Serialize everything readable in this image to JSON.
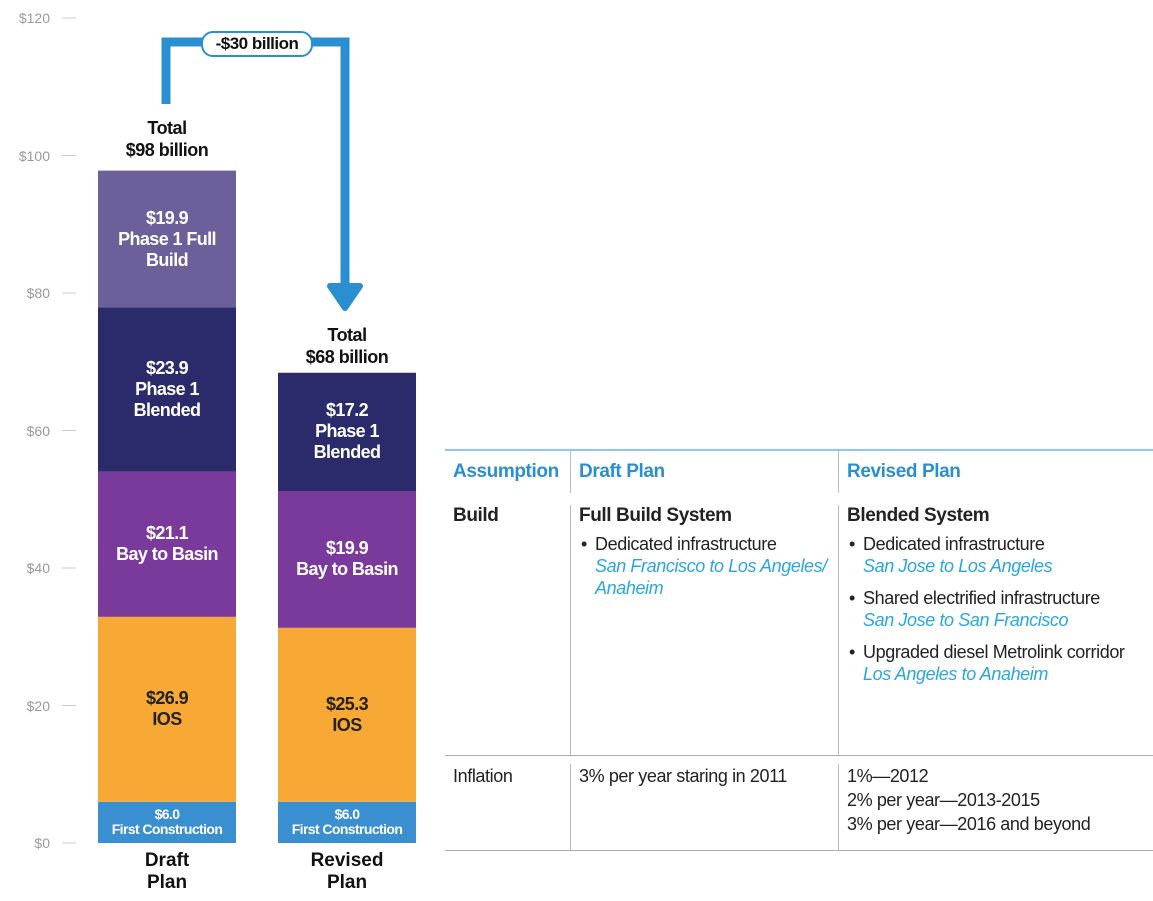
{
  "chart_data": {
    "type": "bar",
    "stacked": true,
    "categories": [
      "Draft Plan",
      "Revised Plan"
    ],
    "series": [
      {
        "name": "First Construction",
        "color": "#3a8fd0",
        "values": [
          6.0,
          6.0
        ],
        "value_labels": [
          "$6.0",
          "$6.0"
        ]
      },
      {
        "name": "IOS",
        "color": "#f8a935",
        "values": [
          26.9,
          25.3
        ],
        "value_labels": [
          "$26.9",
          "$25.3"
        ]
      },
      {
        "name": "Bay to Basin",
        "color": "#7a3a9c",
        "values": [
          21.1,
          19.9
        ],
        "value_labels": [
          "$21.1",
          "$19.9"
        ]
      },
      {
        "name": "Phase 1 Blended",
        "color": "#2b2b6c",
        "values": [
          23.9,
          17.2
        ],
        "value_labels": [
          "$23.9",
          "$17.2"
        ]
      },
      {
        "name": "Phase 1 Full Build",
        "color": "#6c5f9a",
        "values": [
          19.9,
          null
        ],
        "value_labels": [
          "$19.9",
          null
        ]
      }
    ],
    "totals": {
      "label": "Total",
      "values": [
        98,
        68
      ],
      "value_labels": [
        "$98 billion",
        "$68 billion"
      ]
    },
    "annotation": "-$30 billion",
    "ylim": [
      0,
      120
    ],
    "yticks": [
      {
        "value": 0,
        "label": "$0"
      },
      {
        "value": 20,
        "label": "$20"
      },
      {
        "value": 40,
        "label": "$40"
      },
      {
        "value": 60,
        "label": "$60"
      },
      {
        "value": 80,
        "label": "$80"
      },
      {
        "value": 100,
        "label": "$100"
      },
      {
        "value": 120,
        "label": "$120"
      }
    ]
  },
  "table": {
    "header": [
      "Assumption",
      "Draft Plan",
      "Revised Plan"
    ],
    "build": {
      "label": "Build",
      "draft": {
        "title": "Full Build System",
        "items": [
          {
            "text": "Dedicated infrastructure",
            "sub": "San Francisco to Los Angeles/ Anaheim"
          }
        ]
      },
      "revised": {
        "title": "Blended System",
        "items": [
          {
            "text": "Dedicated infrastructure",
            "sub": "San Jose to Los Angeles"
          },
          {
            "text": "Shared electrified infrastructure",
            "sub": "San Jose to San Francisco"
          },
          {
            "text": "Upgraded diesel Metrolink corridor",
            "sub": "Los Angeles to Anaheim"
          }
        ]
      }
    },
    "inflation": {
      "label": "Inflation",
      "draft": [
        "3% per year staring in 2011"
      ],
      "revised": [
        "1%—2012",
        "2% per year—2013-2015",
        "3% per year—2016 and beyond"
      ]
    }
  }
}
